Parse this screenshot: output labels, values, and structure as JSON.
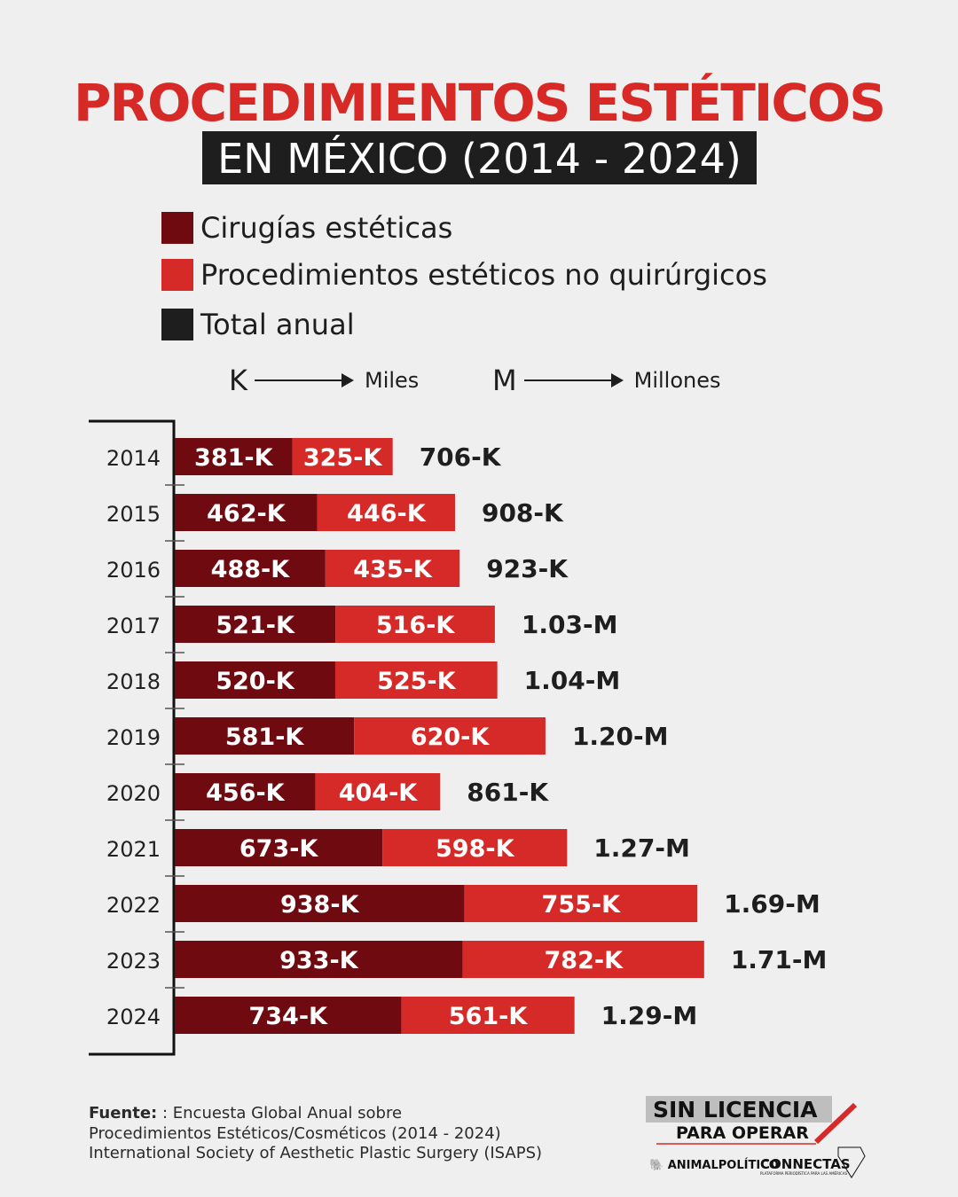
{
  "title": "PROCEDIMIENTOS ESTÉTICOS",
  "subtitle": "EN MÉXICO (2014 - 2024)",
  "legend": [
    {
      "label": "Cirugías estéticas",
      "color": "#6e0a10"
    },
    {
      "label": "Procedimientos estéticos no quirúrgicos",
      "color": "#d62a28"
    },
    {
      "label": "Total anual",
      "color": "#1e1e1e"
    }
  ],
  "units": [
    {
      "key": "K",
      "meaning": "Miles"
    },
    {
      "key": "M",
      "meaning": "Millones"
    }
  ],
  "chart_data": {
    "type": "bar",
    "orientation": "horizontal",
    "stacked": true,
    "categories": [
      "2014",
      "2015",
      "2016",
      "2017",
      "2018",
      "2019",
      "2020",
      "2021",
      "2022",
      "2023",
      "2024"
    ],
    "series": [
      {
        "name": "Cirugías estéticas",
        "color": "#6e0a10",
        "values": [
          381,
          462,
          488,
          521,
          520,
          581,
          456,
          673,
          938,
          933,
          734
        ],
        "labels": [
          "381-K",
          "462-K",
          "488-K",
          "521-K",
          "520-K",
          "581-K",
          "456-K",
          "673-K",
          "938-K",
          "933-K",
          "734-K"
        ]
      },
      {
        "name": "Procedimientos estéticos no quirúrgicos",
        "color": "#d62a28",
        "values": [
          325,
          446,
          435,
          516,
          525,
          620,
          404,
          598,
          755,
          782,
          561
        ],
        "labels": [
          "325-K",
          "446-K",
          "435-K",
          "516-K",
          "525-K",
          "620-K",
          "404-K",
          "598-K",
          "755-K",
          "782-K",
          "561-K"
        ]
      }
    ],
    "totals": [
      "706-K",
      "908-K",
      "923-K",
      "1.03-M",
      "1.04-M",
      "1.20-M",
      "861-K",
      "1.27-M",
      "1.69-M",
      "1.71-M",
      "1.29-M"
    ],
    "unit": "K"
  },
  "footer": {
    "label": "Fuente:",
    "line1": ": Encuesta Global Anual sobre",
    "line2": "Procedimientos Estéticos/Cosméticos (2014 - 2024)",
    "line3": "International Society of Aesthetic Plastic Surgery (ISAPS)"
  },
  "logos": {
    "main": "SIN LICENCIA PARA OPERAR",
    "partner1": "ANIMALPOLÍTICO",
    "partner2": "CONNECTAS",
    "partner2_tagline": "PLATAFORMA PERIODÍSTICA PARA LAS AMÉRICAS"
  }
}
